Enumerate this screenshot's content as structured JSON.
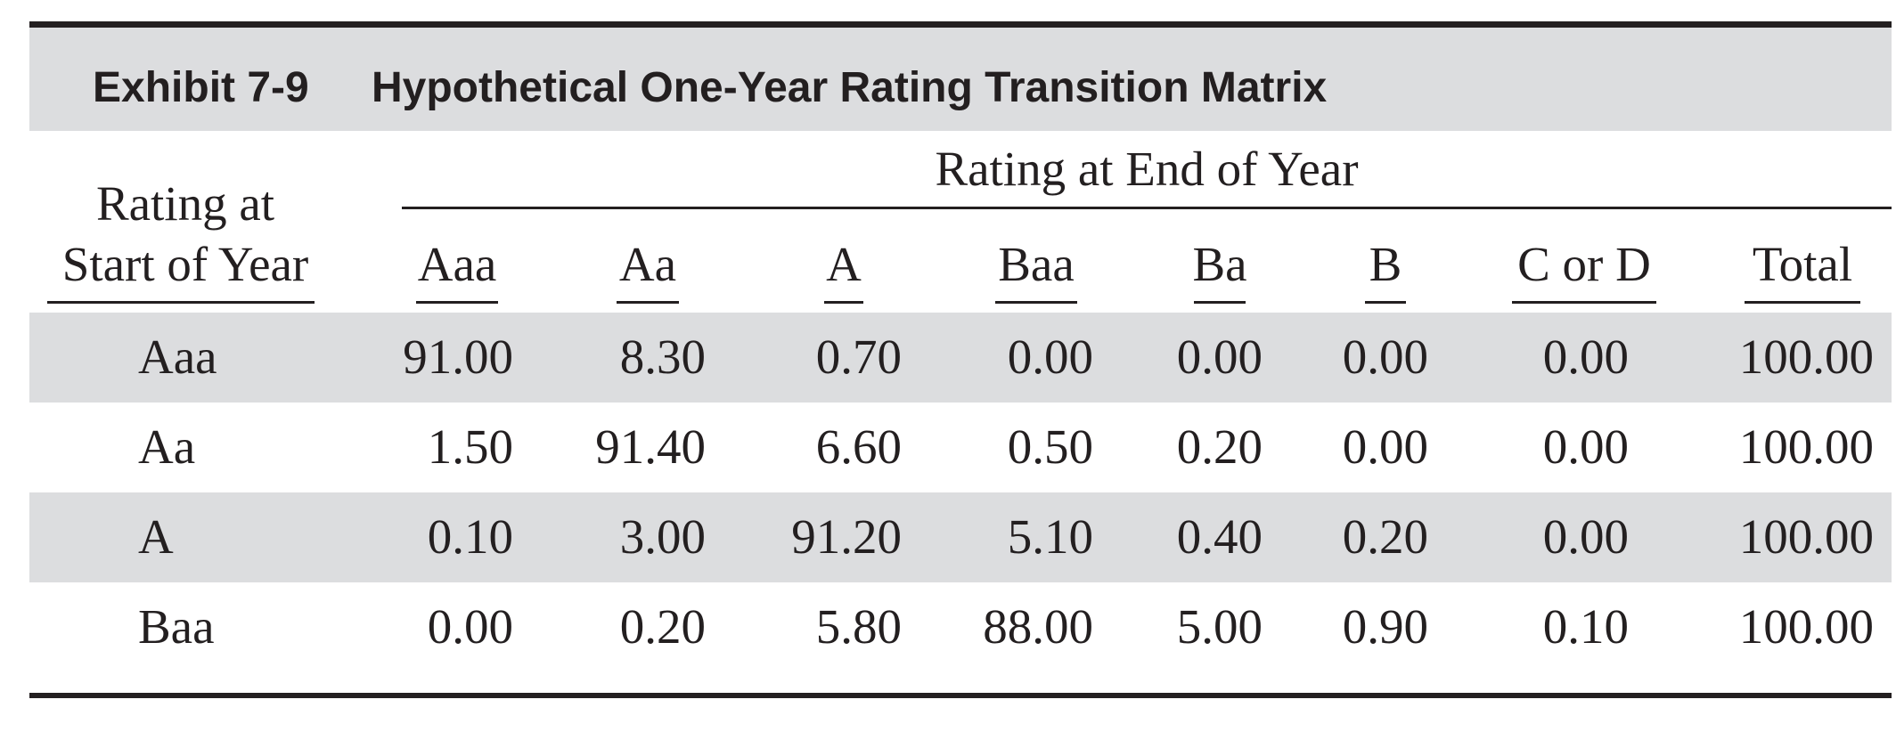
{
  "title": {
    "exhibit": "Exhibit 7-9",
    "text": "Hypothetical One-Year Rating Transition Matrix"
  },
  "row_header": {
    "line1": "Rating at",
    "line2": "Start of Year"
  },
  "column_group_header": "Rating at End of Year",
  "columns": [
    "Aaa",
    "Aa",
    "A",
    "Baa",
    "Ba",
    "B",
    "C or D",
    "Total"
  ],
  "rows": [
    {
      "label": "Aaa",
      "values": [
        "91.00",
        "8.30",
        "0.70",
        "0.00",
        "0.00",
        "0.00",
        "0.00",
        "100.00"
      ]
    },
    {
      "label": "Aa",
      "values": [
        "1.50",
        "91.40",
        "6.60",
        "0.50",
        "0.20",
        "0.00",
        "0.00",
        "100.00"
      ]
    },
    {
      "label": "A",
      "values": [
        "0.10",
        "3.00",
        "91.20",
        "5.10",
        "0.40",
        "0.20",
        "0.00",
        "100.00"
      ]
    },
    {
      "label": "Baa",
      "values": [
        "0.00",
        "0.20",
        "5.80",
        "88.00",
        "5.00",
        "0.90",
        "0.10",
        "100.00"
      ]
    }
  ]
}
